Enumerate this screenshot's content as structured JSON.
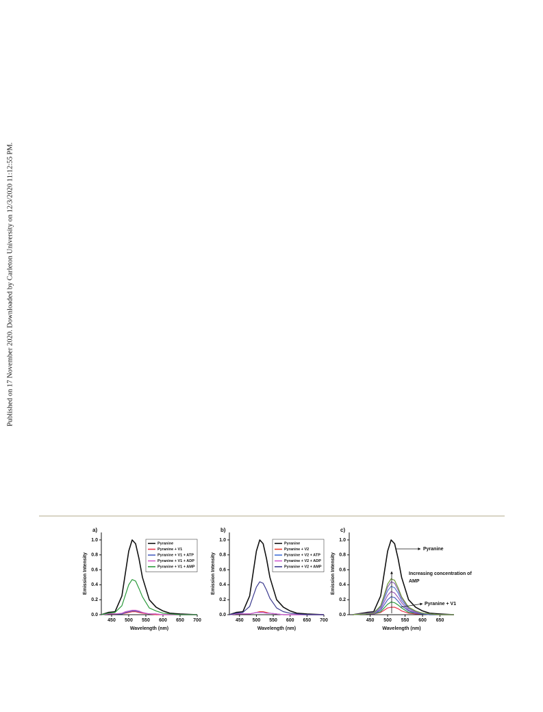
{
  "side_note": "Published on 17 November 2020. Downloaded by Carleton University on 12/3/2020 11:12:55 PM.",
  "chart_data": [
    {
      "type": "line",
      "title": "a)",
      "xlabel": "Wavelength (nm)",
      "ylabel": "Emission Intensity",
      "xlim": [
        420,
        700
      ],
      "ylim": [
        0,
        1.1
      ],
      "xticks": [
        450,
        500,
        550,
        600,
        650,
        700
      ],
      "yticks": [
        {
          "value": 0,
          "label": "0.0"
        },
        0.2,
        0.4,
        0.6,
        0.8,
        {
          "value": 1,
          "label": "1.0"
        }
      ],
      "legend": "upper right",
      "x": [
        420,
        440,
        460,
        480,
        490,
        500,
        510,
        520,
        530,
        540,
        560,
        580,
        600,
        620,
        650,
        700
      ],
      "series": [
        {
          "name": "Pyranine",
          "color": "#111111",
          "values": [
            0,
            0.03,
            0.04,
            0.25,
            0.55,
            0.85,
            1.0,
            0.95,
            0.75,
            0.5,
            0.2,
            0.1,
            0.05,
            0.02,
            0.01,
            0
          ]
        },
        {
          "name": "Pyranine + V1",
          "color": "#e8344a",
          "values": [
            0,
            0.01,
            0.01,
            0.01,
            0.02,
            0.03,
            0.04,
            0.04,
            0.03,
            0.02,
            0.01,
            0,
            0,
            0,
            0,
            0
          ]
        },
        {
          "name": "Pyranine + V1 + ATP",
          "color": "#4a5fc1",
          "values": [
            0,
            0.01,
            0.01,
            0.01,
            0.03,
            0.04,
            0.05,
            0.05,
            0.04,
            0.03,
            0.01,
            0.01,
            0,
            0,
            0,
            0
          ]
        },
        {
          "name": "Pyranine + V1 + ADP",
          "color": "#d45cc8",
          "values": [
            0,
            0.01,
            0.01,
            0.02,
            0.04,
            0.05,
            0.06,
            0.06,
            0.05,
            0.03,
            0.01,
            0.01,
            0,
            0,
            0,
            0
          ]
        },
        {
          "name": "Pyranine + V1 + AMP",
          "color": "#2a9a3a",
          "values": [
            0,
            0.02,
            0.03,
            0.12,
            0.26,
            0.4,
            0.47,
            0.45,
            0.35,
            0.24,
            0.09,
            0.05,
            0.02,
            0.01,
            0,
            0
          ]
        }
      ]
    },
    {
      "type": "line",
      "title": "b)",
      "xlabel": "Wavelength (nm)",
      "ylabel": "Emission Intensity",
      "xlim": [
        420,
        700
      ],
      "ylim": [
        0,
        1.1
      ],
      "xticks": [
        450,
        500,
        550,
        600,
        650,
        700
      ],
      "yticks": [
        {
          "value": 0,
          "label": "0.0"
        },
        0.2,
        0.4,
        0.6,
        0.8,
        {
          "value": 1,
          "label": "1.0"
        }
      ],
      "legend": "upper right",
      "x": [
        420,
        440,
        460,
        480,
        490,
        500,
        510,
        520,
        530,
        540,
        560,
        580,
        600,
        620,
        650,
        700
      ],
      "series": [
        {
          "name": "Pyranine",
          "color": "#111111",
          "values": [
            0,
            0.03,
            0.04,
            0.25,
            0.55,
            0.85,
            1.0,
            0.95,
            0.75,
            0.5,
            0.2,
            0.1,
            0.05,
            0.02,
            0.01,
            0
          ]
        },
        {
          "name": "Pyranine + V2",
          "color": "#e83a2a",
          "values": [
            0,
            0.01,
            0.01,
            0.01,
            0.02,
            0.03,
            0.04,
            0.04,
            0.03,
            0.02,
            0.01,
            0,
            0,
            0,
            0,
            0
          ]
        },
        {
          "name": "Pyranine + V2 + ATP",
          "color": "#4070d8",
          "values": [
            0,
            0.01,
            0.01,
            0.01,
            0.02,
            0.03,
            0.03,
            0.03,
            0.02,
            0.02,
            0.01,
            0,
            0,
            0,
            0,
            0
          ]
        },
        {
          "name": "Pyranine + V2 + ADP",
          "color": "#cf5bd0",
          "values": [
            0,
            0.01,
            0.01,
            0.01,
            0.02,
            0.03,
            0.03,
            0.03,
            0.02,
            0.02,
            0.01,
            0,
            0,
            0,
            0,
            0
          ]
        },
        {
          "name": "Pyranine + V2 + AMP",
          "color": "#3b3a8f",
          "values": [
            0,
            0.02,
            0.03,
            0.11,
            0.24,
            0.37,
            0.44,
            0.42,
            0.33,
            0.22,
            0.09,
            0.04,
            0.02,
            0.01,
            0,
            0
          ]
        }
      ]
    },
    {
      "type": "line",
      "title": "c)",
      "xlabel": "Wavelength (nm)",
      "ylabel": "Emission Intensity",
      "xlim": [
        390,
        690
      ],
      "ylim": [
        0,
        1.1
      ],
      "xticks": [
        450,
        500,
        550,
        600,
        650
      ],
      "yticks": [
        {
          "value": 0,
          "label": "0.0"
        },
        0.2,
        0.4,
        0.6,
        0.8,
        {
          "value": 1,
          "label": "1.0"
        }
      ],
      "annotations": [
        "Pyranine",
        "Increasing concentration of AMP",
        "Pyranine + V1"
      ],
      "x": [
        400,
        440,
        460,
        480,
        490,
        500,
        510,
        520,
        530,
        540,
        560,
        580,
        600,
        620,
        650,
        690
      ],
      "series": [
        {
          "color": "#111111",
          "values": [
            0,
            0.03,
            0.04,
            0.25,
            0.55,
            0.85,
            1.0,
            0.95,
            0.75,
            0.5,
            0.2,
            0.1,
            0.05,
            0.02,
            0.01,
            0
          ]
        },
        {
          "color": "#e8344a",
          "values": [
            0,
            0.01,
            0.01,
            0.03,
            0.06,
            0.09,
            0.1,
            0.1,
            0.08,
            0.05,
            0.02,
            0.01,
            0.01,
            0,
            0,
            0
          ]
        },
        {
          "color": "#2a9a3a",
          "values": [
            0,
            0.01,
            0.01,
            0.04,
            0.09,
            0.14,
            0.17,
            0.16,
            0.13,
            0.09,
            0.03,
            0.02,
            0.01,
            0,
            0,
            0
          ]
        },
        {
          "color": "#4a5fc1",
          "values": [
            0,
            0.01,
            0.01,
            0.06,
            0.13,
            0.2,
            0.24,
            0.23,
            0.18,
            0.12,
            0.05,
            0.02,
            0.01,
            0,
            0,
            0
          ]
        },
        {
          "color": "#9b59b6",
          "values": [
            0,
            0.01,
            0.01,
            0.08,
            0.17,
            0.26,
            0.31,
            0.29,
            0.23,
            0.16,
            0.06,
            0.03,
            0.02,
            0.01,
            0,
            0
          ]
        },
        {
          "color": "#5b7fd0",
          "values": [
            0,
            0.01,
            0.02,
            0.1,
            0.21,
            0.32,
            0.38,
            0.36,
            0.29,
            0.19,
            0.08,
            0.04,
            0.02,
            0.01,
            0,
            0
          ]
        },
        {
          "color": "#8a5fb8",
          "values": [
            0,
            0.02,
            0.03,
            0.11,
            0.24,
            0.37,
            0.44,
            0.42,
            0.33,
            0.22,
            0.09,
            0.04,
            0.02,
            0.01,
            0,
            0
          ]
        },
        {
          "color": "#6f9a3a",
          "values": [
            0,
            0.01,
            0.02,
            0.12,
            0.26,
            0.41,
            0.48,
            0.46,
            0.36,
            0.24,
            0.1,
            0.05,
            0.02,
            0.01,
            0,
            0
          ]
        }
      ]
    }
  ]
}
